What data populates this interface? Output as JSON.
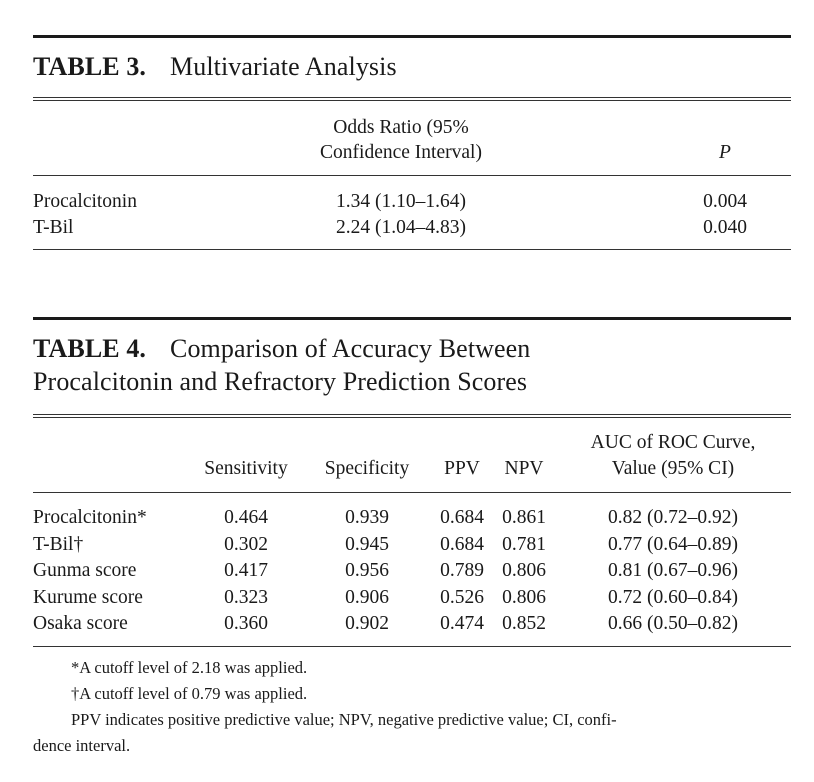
{
  "table3": {
    "label": "TABLE 3.",
    "title": "Multivariate Analysis",
    "headers": {
      "variable": "",
      "odds_ratio_line1": "Odds Ratio (95%",
      "odds_ratio_line2": "Confidence Interval)",
      "p": "P"
    },
    "rows": [
      {
        "variable": "Procalcitonin",
        "odds_ratio": "1.34 (1.10–1.64)",
        "p": "0.004"
      },
      {
        "variable": "T-Bil",
        "odds_ratio": "2.24 (1.04–4.83)",
        "p": "0.040"
      }
    ]
  },
  "table4": {
    "label": "TABLE 4.",
    "title_line1": "Comparison of Accuracy Between",
    "title_line2": "Procalcitonin and Refractory Prediction Scores",
    "headers": {
      "sensitivity": "Sensitivity",
      "specificity": "Specificity",
      "ppv": "PPV",
      "npv": "NPV",
      "auc_line1": "AUC of ROC Curve,",
      "auc_line2": "Value (95% CI)"
    },
    "rows": [
      {
        "name": "Procalcitonin*",
        "sensitivity": "0.464",
        "specificity": "0.939",
        "ppv": "0.684",
        "npv": "0.861",
        "auc": "0.82 (0.72–0.92)"
      },
      {
        "name": "T-Bil†",
        "sensitivity": "0.302",
        "specificity": "0.945",
        "ppv": "0.684",
        "npv": "0.781",
        "auc": "0.77 (0.64–0.89)"
      },
      {
        "name": "Gunma score",
        "sensitivity": "0.417",
        "specificity": "0.956",
        "ppv": "0.789",
        "npv": "0.806",
        "auc": "0.81 (0.67–0.96)"
      },
      {
        "name": "Kurume score",
        "sensitivity": "0.323",
        "specificity": "0.906",
        "ppv": "0.526",
        "npv": "0.806",
        "auc": "0.72 (0.60–0.84)"
      },
      {
        "name": "Osaka score",
        "sensitivity": "0.360",
        "specificity": "0.902",
        "ppv": "0.474",
        "npv": "0.852",
        "auc": "0.66 (0.50–0.82)"
      }
    ],
    "notes": {
      "note1": "*A cutoff level of 2.18 was applied.",
      "note2": "†A cutoff level of 0.79 was applied.",
      "note3_line1": "PPV indicates positive predictive value; NPV, negative predictive value; CI, confi-",
      "note3_line2": "dence interval."
    }
  }
}
